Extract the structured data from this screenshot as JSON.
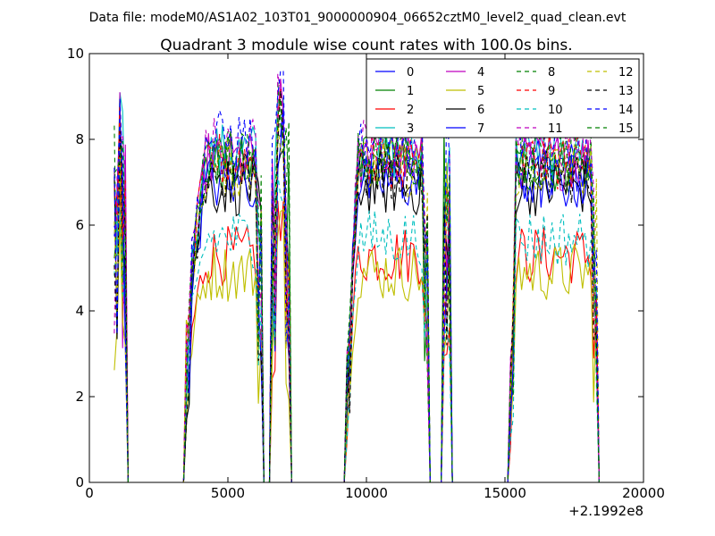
{
  "figure": {
    "suptitle": "Data file: modeM0/AS1A02_103T01_9000000904_06652cztM0_level2_quad_clean.evt"
  },
  "chart_data": {
    "type": "line",
    "title": "Quadrant 3 module wise count rates with 100.0s bins.",
    "xlabel": "",
    "ylabel": "",
    "xlim": [
      0,
      20000
    ],
    "ylim": [
      0,
      10
    ],
    "x_offset_label": "+2.1992e8",
    "xticks": [
      0,
      5000,
      10000,
      15000,
      20000
    ],
    "yticks": [
      0,
      2,
      4,
      6,
      8,
      10
    ],
    "legend_position": "top-right",
    "legend_columns": 4,
    "active_segments": [
      {
        "from": 850,
        "to": 1350
      },
      {
        "from": 3500,
        "to": 6250
      },
      {
        "from": 6600,
        "to": 7200
      },
      {
        "from": 9300,
        "to": 12250
      },
      {
        "from": 12800,
        "to": 13000
      },
      {
        "from": 15200,
        "to": 18350
      }
    ],
    "series": [
      {
        "name": "0",
        "color": "#0000ff",
        "dash": "solid",
        "base": 7.3
      },
      {
        "name": "1",
        "color": "#008000",
        "dash": "solid",
        "base": 7.4
      },
      {
        "name": "2",
        "color": "#ff0000",
        "dash": "solid",
        "base": 5.3
      },
      {
        "name": "3",
        "color": "#00bfbf",
        "dash": "solid",
        "base": 7.7
      },
      {
        "name": "4",
        "color": "#bf00bf",
        "dash": "solid",
        "base": 7.5
      },
      {
        "name": "5",
        "color": "#bfbf00",
        "dash": "solid",
        "base": 4.9
      },
      {
        "name": "6",
        "color": "#000000",
        "dash": "solid",
        "base": 6.9
      },
      {
        "name": "7",
        "color": "#0000ff",
        "dash": "solid",
        "base": 7.0
      },
      {
        "name": "8",
        "color": "#008000",
        "dash": "dashed",
        "base": 7.6
      },
      {
        "name": "9",
        "color": "#ff0000",
        "dash": "dashed",
        "base": 7.5
      },
      {
        "name": "10",
        "color": "#00bfbf",
        "dash": "dashed",
        "base": 5.7
      },
      {
        "name": "11",
        "color": "#bf00bf",
        "dash": "dashed",
        "base": 7.8
      },
      {
        "name": "12",
        "color": "#bfbf00",
        "dash": "dashed",
        "base": 7.3
      },
      {
        "name": "13",
        "color": "#000000",
        "dash": "dashed",
        "base": 7.2
      },
      {
        "name": "14",
        "color": "#0000ff",
        "dash": "dashed",
        "base": 8.0
      },
      {
        "name": "15",
        "color": "#008000",
        "dash": "dashed",
        "base": 7.5
      }
    ]
  }
}
